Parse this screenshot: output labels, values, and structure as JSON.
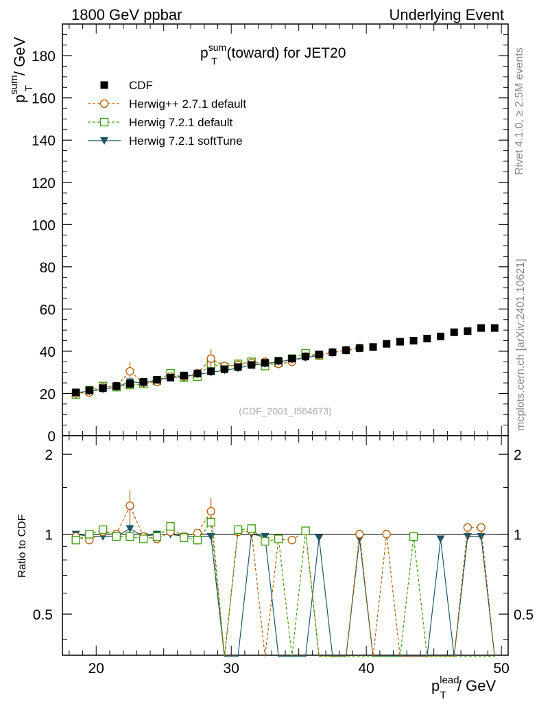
{
  "header": {
    "left": "1800 GeV ppbar",
    "right": "Underlying Event"
  },
  "side_labels": {
    "rivet": "Rivet 4.1.0, ≥ 2.5M events",
    "mcplots": "mcplots.cern.ch [arXiv:2401.10621]"
  },
  "watermark": "(CDF_2001_I564673)",
  "chart_data": [
    {
      "type": "scatter",
      "panel": "main",
      "title": {
        "base": "p",
        "sup": "sum",
        "sub": "T",
        "rest": " (toward) for JET20"
      },
      "ylabel": {
        "base": "p",
        "sup": "sum",
        "sub": "T",
        "rest": " / GeV"
      },
      "xlim": [
        17.5,
        50.5
      ],
      "ylim": [
        0,
        195
      ],
      "yticks": [
        0,
        20,
        40,
        60,
        80,
        100,
        120,
        140,
        160,
        180
      ],
      "ytick_labels": [
        "0",
        "20",
        "40",
        "60",
        "80",
        "100",
        "120",
        "140",
        "160",
        "180"
      ],
      "legend_position": "top-left",
      "legend": [
        {
          "key": "cdf",
          "label": "CDF"
        },
        {
          "key": "hpp",
          "label": "Herwig++ 2.7.1 default"
        },
        {
          "key": "h721",
          "label": "Herwig 7.2.1 default"
        },
        {
          "key": "soft",
          "label": "Herwig 7.2.1 softTune"
        }
      ],
      "series": [
        {
          "key": "cdf",
          "name": "CDF",
          "color": "#000000",
          "marker": "square-filled",
          "x": [
            18.5,
            19.5,
            20.5,
            21.5,
            22.5,
            23.5,
            24.5,
            25.5,
            26.5,
            27.5,
            28.5,
            29.5,
            30.5,
            31.5,
            32.5,
            33.5,
            34.5,
            35.5,
            36.5,
            37.5,
            38.5,
            39.5,
            40.5,
            41.5,
            42.5,
            43.5,
            44.5,
            45.5,
            46.5,
            47.5,
            48.5,
            49.5
          ],
          "y": [
            20.5,
            21.5,
            22.5,
            23.5,
            24.5,
            25.5,
            26.5,
            27.5,
            28.5,
            29.5,
            30.5,
            31.5,
            32.5,
            33.5,
            34.5,
            35.5,
            36.5,
            37.5,
            38.5,
            39.5,
            40.5,
            41.5,
            42.0,
            43.5,
            44.5,
            45.0,
            46.0,
            47.0,
            49.0,
            49.5,
            51.0,
            51.0
          ]
        },
        {
          "key": "hpp",
          "name": "Herwig++ 2.7.1 default",
          "color": "#b35900",
          "marker": "circle-open",
          "dash": "4,3",
          "x": [
            18.5,
            19.5,
            20.5,
            21.5,
            22.5,
            23.5,
            24.5,
            25.5,
            26.5,
            27.5,
            28.5,
            29.5,
            30.5,
            31.5,
            32.5,
            33.5,
            34.5,
            35.5,
            36.5,
            37.5,
            38.5,
            39.5
          ],
          "y": [
            20.0,
            20.5,
            23.0,
            23.5,
            30.5,
            25.0,
            25.5,
            28.0,
            28.0,
            29.5,
            36.5,
            33.0,
            33.5,
            34.5,
            35.0,
            34.0,
            35.0,
            37.5,
            38.0,
            39.5,
            40.5,
            41.5
          ],
          "err": [
            0.5,
            0.5,
            0.8,
            0.6,
            4.5,
            0.6,
            0.6,
            0.8,
            0.8,
            0.8,
            4.5,
            0.8,
            0.8,
            0.6,
            0.6,
            0.6,
            0.6,
            0.6,
            0.6,
            0.6,
            0.6,
            0.6
          ]
        },
        {
          "key": "h721",
          "name": "Herwig 7.2.1 default",
          "color": "#3a9a00",
          "marker": "square-open",
          "dash": "4,3",
          "x": [
            18.5,
            19.5,
            20.5,
            21.5,
            22.5,
            23.5,
            24.5,
            25.5,
            26.5,
            27.5,
            28.5,
            29.5,
            30.5,
            31.5,
            32.5,
            33.5,
            34.5,
            35.5,
            36.5
          ],
          "y": [
            19.5,
            21.5,
            23.5,
            23.0,
            24.0,
            24.5,
            26.0,
            29.5,
            27.5,
            28.0,
            34.0,
            32.5,
            34.0,
            35.0,
            33.0,
            34.5,
            36.5,
            39.0,
            38.0
          ],
          "err": [
            0.6,
            0.6,
            0.8,
            0.6,
            0.8,
            0.6,
            0.6,
            0.8,
            0.8,
            0.8,
            1.2,
            0.8,
            0.8,
            0.6,
            0.6,
            0.6,
            0.6,
            0.6,
            0.6
          ]
        },
        {
          "key": "soft",
          "name": "Herwig 7.2.1 softTune",
          "color": "#1f5566",
          "marker": "triangle-down-filled",
          "x": [
            18.5,
            19.5,
            20.5,
            21.5,
            22.5,
            23.5,
            24.5,
            25.5,
            26.5,
            27.5,
            28.5,
            29.5,
            30.5,
            31.5,
            32.5,
            33.5,
            34.5,
            35.5,
            36.5
          ],
          "y": [
            20.5,
            21.0,
            22.0,
            23.0,
            25.5,
            25.0,
            26.5,
            27.5,
            28.0,
            29.0,
            30.0,
            31.0,
            32.0,
            33.5,
            34.0,
            35.0,
            36.0,
            37.0,
            38.0
          ],
          "err": [
            0.5,
            0.5,
            0.6,
            0.6,
            1.5,
            0.8,
            0.6,
            0.8,
            0.8,
            0.8,
            0.8,
            0.6,
            0.6,
            0.6,
            0.6,
            0.6,
            0.6,
            0.6,
            0.6
          ]
        }
      ]
    },
    {
      "type": "line",
      "panel": "ratio",
      "ylabel": "Ratio to CDF",
      "xlabel": {
        "base": "p",
        "sup": "lead",
        "sub": "T",
        "rest": " / GeV"
      },
      "xlim": [
        17.5,
        50.5
      ],
      "ylim": [
        0.35,
        2.35
      ],
      "yscale": "log",
      "xticks": [
        20,
        30,
        40,
        50
      ],
      "xtick_labels": [
        "20",
        "30",
        "40",
        "50"
      ],
      "yticks": [
        0.5,
        1,
        2
      ],
      "ytick_labels": [
        "0.5",
        "1",
        "2"
      ],
      "reference_line": 1,
      "floor_value": 0.3,
      "series": [
        {
          "key": "hpp",
          "name": "Herwig++ 2.7.1 default",
          "color": "#b35900",
          "marker": "circle-open",
          "dash": "4,3",
          "x": [
            18.5,
            19.5,
            20.5,
            21.5,
            22.5,
            23.5,
            24.5,
            25.5,
            26.5,
            27.5,
            28.5,
            29.5,
            30.5,
            31.5,
            32.5,
            33.5,
            34.5,
            35.5,
            36.5,
            37.5,
            38.5,
            39.5,
            40.5,
            41.5,
            42.5,
            43.5,
            44.5,
            45.5,
            46.5,
            47.5,
            48.5,
            49.5
          ],
          "ratio": [
            0.98,
            0.95,
            1.02,
            1.0,
            1.28,
            0.98,
            0.96,
            1.02,
            0.98,
            1.01,
            1.22,
            0.0,
            1.02,
            1.03,
            0.0,
            0.96,
            0.95,
            1.03,
            0.0,
            0.0,
            0.0,
            1.0,
            0.0,
            1.0,
            0.0,
            0.0,
            0.0,
            0.0,
            0.0,
            1.06,
            1.06,
            0.0
          ],
          "err": [
            0.02,
            0.02,
            0.03,
            0.02,
            0.18,
            0.02,
            0.02,
            0.03,
            0.03,
            0.03,
            0.15,
            0,
            0.02,
            0.02,
            0,
            0.02,
            0.02,
            0.02,
            0,
            0,
            0,
            0.02,
            0,
            0.02,
            0,
            0,
            0,
            0,
            0,
            0.02,
            0.02,
            0
          ]
        },
        {
          "key": "h721",
          "name": "Herwig 7.2.1 default",
          "color": "#3a9a00",
          "marker": "square-open",
          "dash": "4,3",
          "x": [
            18.5,
            19.5,
            20.5,
            21.5,
            22.5,
            23.5,
            24.5,
            25.5,
            26.5,
            27.5,
            28.5,
            29.5,
            30.5,
            31.5,
            32.5,
            33.5,
            34.5,
            35.5,
            36.5,
            37.5,
            38.5,
            39.5,
            40.5,
            41.5,
            42.5,
            43.5,
            44.5,
            45.5,
            46.5,
            47.5,
            48.5,
            49.5
          ],
          "ratio": [
            0.95,
            1.0,
            1.04,
            0.98,
            0.98,
            0.96,
            0.98,
            1.07,
            0.97,
            0.95,
            1.11,
            0.0,
            1.04,
            1.05,
            0.94,
            0.96,
            0.0,
            1.03,
            0.0,
            0.0,
            0.0,
            0.0,
            0.0,
            0.0,
            0.0,
            0.98,
            0.0,
            0.0,
            0.0,
            0.0,
            0.0,
            0.0
          ],
          "err": [
            0.02,
            0.02,
            0.04,
            0.02,
            0.03,
            0.02,
            0.02,
            0.04,
            0.03,
            0.03,
            0.05,
            0,
            0.04,
            0.02,
            0.02,
            0.02,
            0,
            0.02,
            0,
            0,
            0,
            0,
            0,
            0,
            0,
            0.02,
            0,
            0,
            0,
            0,
            0,
            0
          ]
        },
        {
          "key": "soft",
          "name": "Herwig 7.2.1 softTune",
          "color": "#1f5566",
          "marker": "triangle-down-filled",
          "x": [
            18.5,
            19.5,
            20.5,
            21.5,
            22.5,
            23.5,
            24.5,
            25.5,
            26.5,
            27.5,
            28.5,
            29.5,
            30.5,
            31.5,
            32.5,
            33.5,
            34.5,
            35.5,
            36.5,
            37.5,
            38.5,
            39.5,
            40.5,
            41.5,
            42.5,
            43.5,
            44.5,
            45.5,
            46.5,
            47.5,
            48.5,
            49.5
          ],
          "ratio": [
            1.0,
            0.98,
            0.98,
            0.98,
            1.05,
            0.98,
            1.0,
            1.0,
            0.98,
            0.98,
            0.98,
            0.0,
            0.0,
            1.0,
            0.98,
            0.0,
            0.0,
            0.0,
            0.97,
            0.0,
            0.0,
            0.96,
            0.0,
            0.0,
            0.0,
            0.0,
            0.0,
            0.96,
            0.0,
            0.98,
            0.98,
            0.0
          ],
          "err": [
            0.02,
            0.02,
            0.03,
            0.02,
            0.05,
            0.03,
            0.03,
            0.03,
            0.03,
            0.03,
            0.03,
            0,
            0,
            0.02,
            0.02,
            0,
            0,
            0,
            0.02,
            0,
            0,
            0.02,
            0,
            0,
            0,
            0,
            0,
            0.02,
            0,
            0.02,
            0.02,
            0
          ]
        }
      ]
    }
  ]
}
